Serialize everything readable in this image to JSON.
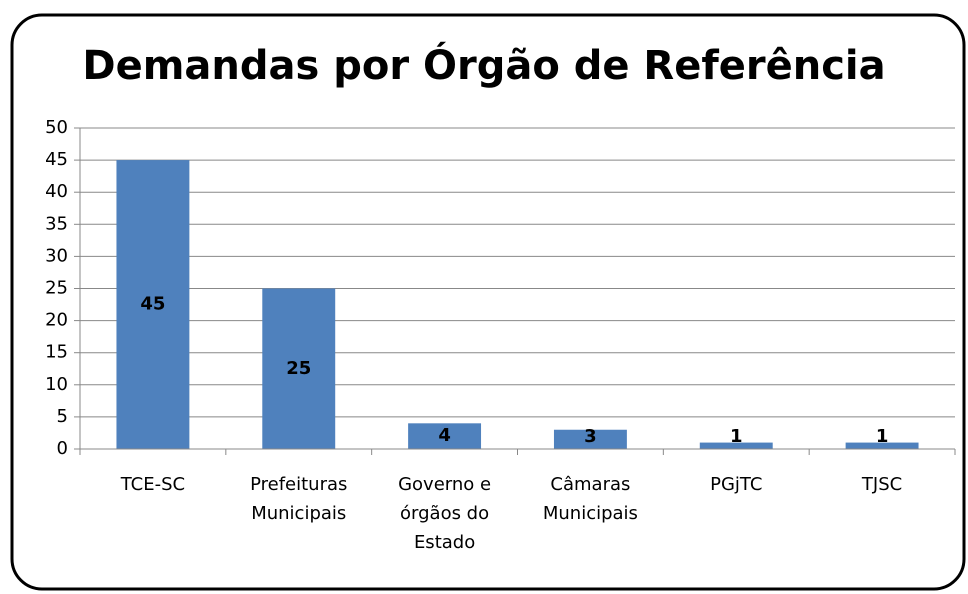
{
  "chart_data": {
    "type": "bar",
    "title": "Demandas por Órgão de Referência",
    "categories": [
      "TCE-SC",
      "Prefeituras\nMunicipais",
      "Governo e\nórgãos do\nEstado",
      "Câmaras\nMunicipais",
      "PGjTC",
      "TJSC"
    ],
    "values": [
      45,
      25,
      4,
      3,
      1,
      1
    ],
    "color": "#4f81bd",
    "ylim": [
      0,
      50
    ],
    "yticks": [
      0,
      5,
      10,
      15,
      20,
      25,
      30,
      35,
      40,
      45,
      50
    ],
    "grid": true
  }
}
